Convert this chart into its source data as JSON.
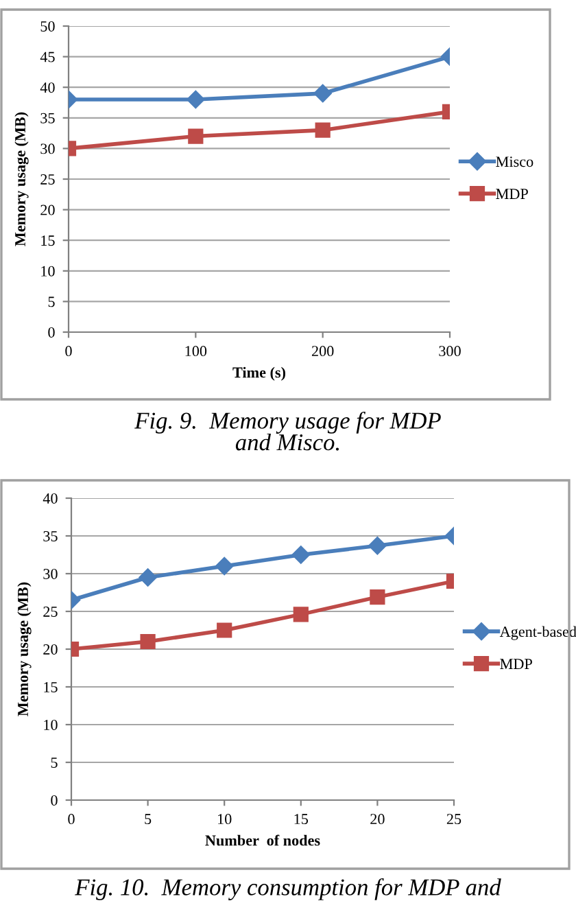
{
  "chart_data": [
    {
      "type": "line",
      "xlabel": "Time (s)",
      "ylabel": "Memory usage (MB)",
      "x": [
        0,
        100,
        200,
        300
      ],
      "xlim": [
        0,
        300
      ],
      "xticks": [
        0,
        100,
        200,
        300
      ],
      "ylim": [
        0,
        50
      ],
      "yticks": [
        0,
        5,
        10,
        15,
        20,
        25,
        30,
        35,
        40,
        45,
        50
      ],
      "grid": "y",
      "legend": "right",
      "line_style": "solid",
      "series": [
        {
          "name": "Misco",
          "color": "#4a7ebb",
          "marker": "diamond",
          "values": [
            38,
            38,
            39,
            45
          ]
        },
        {
          "name": "MDP",
          "color": "#be4b48",
          "marker": "square",
          "values": [
            30,
            32,
            33,
            36
          ]
        }
      ],
      "annotations": [
        "Fig. 9.  Memory usage for MDP\nand Misco."
      ]
    },
    {
      "type": "line",
      "xlabel": "Number  of nodes",
      "ylabel": "Memory usage (MB)",
      "x": [
        0,
        5,
        10,
        15,
        20,
        25
      ],
      "xlim": [
        0,
        25
      ],
      "xticks": [
        0,
        5,
        10,
        15,
        20,
        25
      ],
      "ylim": [
        0,
        40
      ],
      "yticks": [
        0,
        5,
        10,
        15,
        20,
        25,
        30,
        35,
        40
      ],
      "grid": "y",
      "legend": "right",
      "line_style": "solid",
      "series": [
        {
          "name": "Agent-based",
          "color": "#4a7ebb",
          "marker": "diamond",
          "values": [
            26.5,
            29.5,
            31,
            32.5,
            33.7,
            35
          ]
        },
        {
          "name": "MDP",
          "color": "#be4b48",
          "marker": "square",
          "values": [
            20,
            21,
            22.5,
            24.6,
            26.9,
            29
          ]
        }
      ],
      "annotations": [
        "Fig. 10.  Memory consumption for MDP and"
      ]
    }
  ]
}
